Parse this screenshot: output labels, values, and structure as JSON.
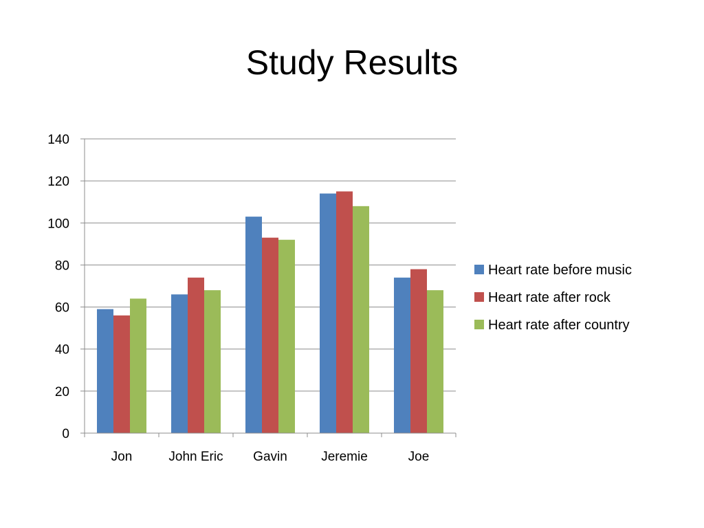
{
  "slide": {
    "title": "Study Results"
  },
  "chart_data": {
    "type": "bar",
    "title": "Study Results",
    "categories": [
      "Jon",
      "John Eric",
      "Gavin",
      "Jeremie",
      "Joe"
    ],
    "series": [
      {
        "name": "Heart rate before music",
        "color": "#4F81BD",
        "values": [
          59,
          66,
          103,
          114,
          74
        ]
      },
      {
        "name": "Heart rate after rock",
        "color": "#C0504D",
        "values": [
          56,
          74,
          93,
          115,
          78
        ]
      },
      {
        "name": "Heart rate after country",
        "color": "#9BBB59",
        "values": [
          64,
          68,
          92,
          108,
          68
        ]
      }
    ],
    "xlabel": "",
    "ylabel": "",
    "ylim": [
      0,
      140
    ],
    "yticks": [
      0,
      20,
      40,
      60,
      80,
      100,
      120,
      140
    ],
    "grid": true,
    "legend_position": "right"
  }
}
